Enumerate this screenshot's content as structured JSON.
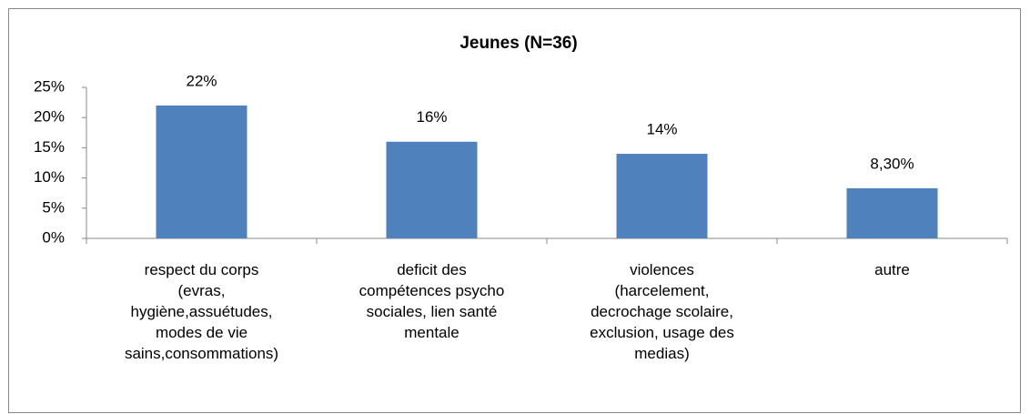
{
  "chart_data": {
    "type": "bar",
    "title": "Jeunes (N=36)",
    "categories": [
      "respect du corps (evras, hygiène,assuétudes, modes de vie sains,consommations)",
      "deficit des compétences psycho sociales, lien santé mentale",
      "violences (harcelement, decrochage scolaire, exclusion,  usage des medias)",
      "autre"
    ],
    "values": [
      22,
      16,
      14,
      8.3
    ],
    "value_labels": [
      "22%",
      "16%",
      "14%",
      "8,30%"
    ],
    "color": "#4f81bd",
    "ylim": [
      0,
      25
    ],
    "yticks": [
      {
        "value": 0,
        "label": "0%"
      },
      {
        "value": 5,
        "label": "5%"
      },
      {
        "value": 10,
        "label": "10%"
      },
      {
        "value": 15,
        "label": "15%"
      },
      {
        "value": 20,
        "label": "20%"
      },
      {
        "value": 25,
        "label": "25%"
      }
    ]
  }
}
